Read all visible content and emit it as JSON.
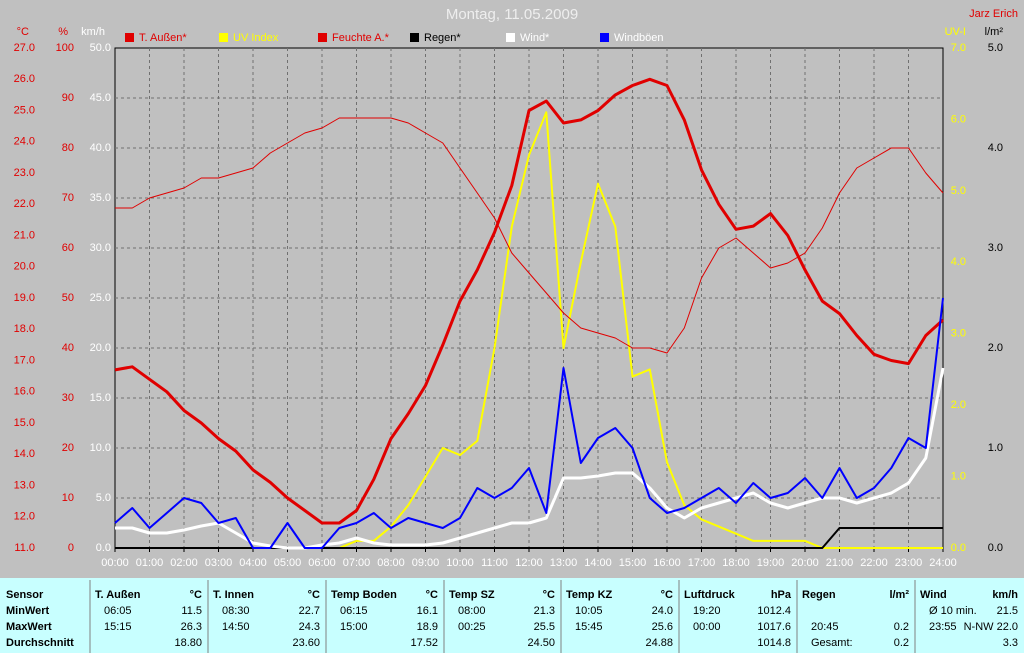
{
  "chart_data": {
    "type": "line",
    "title": "Montag, 11.05.2009",
    "author": "Jarz Erich",
    "x": [
      0,
      0.5,
      1,
      1.5,
      2,
      2.5,
      3,
      3.5,
      4,
      4.5,
      5,
      5.5,
      6,
      6.5,
      7,
      7.5,
      8,
      8.5,
      9,
      9.5,
      10,
      10.5,
      11,
      11.5,
      12,
      12.5,
      13,
      13.5,
      14,
      14.5,
      15,
      15.5,
      16,
      16.5,
      17,
      17.5,
      18,
      18.5,
      19,
      19.5,
      20,
      20.5,
      21,
      21.5,
      22,
      22.5,
      23,
      23.5,
      24
    ],
    "xlim": [
      0,
      24
    ],
    "xticks": [
      {
        "value": 0,
        "label": "00:00"
      },
      {
        "value": 1,
        "label": "01:00"
      },
      {
        "value": 2,
        "label": "02:00"
      },
      {
        "value": 3,
        "label": "03:00"
      },
      {
        "value": 4,
        "label": "04:00"
      },
      {
        "value": 5,
        "label": "05:00"
      },
      {
        "value": 6,
        "label": "06:00"
      },
      {
        "value": 7,
        "label": "07:00"
      },
      {
        "value": 8,
        "label": "08:00"
      },
      {
        "value": 9,
        "label": "09:00"
      },
      {
        "value": 10,
        "label": "10:00"
      },
      {
        "value": 11,
        "label": "11:00"
      },
      {
        "value": 12,
        "label": "12:00"
      },
      {
        "value": 13,
        "label": "13:00"
      },
      {
        "value": 14,
        "label": "14:00"
      },
      {
        "value": 15,
        "label": "15:00"
      },
      {
        "value": 16,
        "label": "16:00"
      },
      {
        "value": 17,
        "label": "17:00"
      },
      {
        "value": 18,
        "label": "18:00"
      },
      {
        "value": 19,
        "label": "19:00"
      },
      {
        "value": 20,
        "label": "20:00"
      },
      {
        "value": 21,
        "label": "21:00"
      },
      {
        "value": 22,
        "label": "22:00"
      },
      {
        "value": 23,
        "label": "23:00"
      },
      {
        "value": 24,
        "label": "24:00"
      }
    ],
    "grid": true,
    "axes": [
      {
        "label": "°C",
        "color": "#e00000",
        "lim": [
          11,
          27
        ],
        "ticks": [
          {
            "value": 11,
            "label": "11.0"
          },
          {
            "value": 12,
            "label": "12.0"
          },
          {
            "value": 13,
            "label": "13.0"
          },
          {
            "value": 14,
            "label": "14.0"
          },
          {
            "value": 15,
            "label": "15.0"
          },
          {
            "value": 16,
            "label": "16.0"
          },
          {
            "value": 17,
            "label": "17.0"
          },
          {
            "value": 18,
            "label": "18.0"
          },
          {
            "value": 19,
            "label": "19.0"
          },
          {
            "value": 20,
            "label": "20.0"
          },
          {
            "value": 21,
            "label": "21.0"
          },
          {
            "value": 22,
            "label": "22.0"
          },
          {
            "value": 23,
            "label": "23.0"
          },
          {
            "value": 24,
            "label": "24.0"
          },
          {
            "value": 25,
            "label": "25.0"
          },
          {
            "value": 26,
            "label": "26.0"
          },
          {
            "value": 27,
            "label": "27.0"
          }
        ]
      },
      {
        "label": "%",
        "color": "#e00000",
        "lim": [
          0,
          100
        ],
        "ticks": [
          0,
          10,
          20,
          30,
          40,
          50,
          60,
          70,
          80,
          90,
          100
        ]
      },
      {
        "label": "km/h",
        "color": "#ffffff",
        "lim": [
          0,
          50
        ],
        "grid": true,
        "ticks": [
          {
            "value": 0,
            "label": "0.0"
          },
          {
            "value": 5,
            "label": "5.0"
          },
          {
            "value": 10,
            "label": "10.0"
          },
          {
            "value": 15,
            "label": "15.0"
          },
          {
            "value": 20,
            "label": "20.0"
          },
          {
            "value": 25,
            "label": "25.0"
          },
          {
            "value": 30,
            "label": "30.0"
          },
          {
            "value": 35,
            "label": "35.0"
          },
          {
            "value": 40,
            "label": "40.0"
          },
          {
            "value": 45,
            "label": "45.0"
          },
          {
            "value": 50,
            "label": "50.0"
          }
        ]
      },
      {
        "label": "UV-I",
        "color": "#ffff00",
        "lim": [
          0,
          7
        ],
        "ticks": [
          {
            "value": 0,
            "label": "0.0"
          },
          {
            "value": 1,
            "label": "1.0"
          },
          {
            "value": 2,
            "label": "2.0"
          },
          {
            "value": 3,
            "label": "3.0"
          },
          {
            "value": 4,
            "label": "4.0"
          },
          {
            "value": 5,
            "label": "5.0"
          },
          {
            "value": 6,
            "label": "6.0"
          },
          {
            "value": 7,
            "label": "7.0"
          }
        ]
      },
      {
        "label": "l/m²",
        "color": "#000000",
        "lim": [
          0,
          5
        ],
        "ticks": [
          {
            "value": 0,
            "label": "0.0"
          },
          {
            "value": 1,
            "label": "1.0"
          },
          {
            "value": 2,
            "label": "2.0"
          },
          {
            "value": 3,
            "label": "3.0"
          },
          {
            "value": 4,
            "label": "4.0"
          },
          {
            "value": 5,
            "label": "5.0"
          }
        ]
      }
    ],
    "series": [
      {
        "name": "T. Außen*",
        "color": "#e00000",
        "width": 3,
        "axis": 0,
        "values": [
          16.7,
          16.8,
          16.4,
          16.0,
          15.4,
          15.0,
          14.5,
          14.1,
          13.5,
          13.1,
          12.6,
          12.2,
          11.8,
          11.8,
          12.2,
          13.2,
          14.5,
          15.3,
          16.2,
          17.5,
          18.9,
          19.9,
          21.1,
          22.6,
          25.0,
          25.3,
          24.6,
          24.7,
          25.0,
          25.5,
          25.8,
          26.0,
          25.8,
          24.7,
          23.1,
          22.0,
          21.2,
          21.3,
          21.7,
          21.0,
          19.9,
          18.9,
          18.5,
          17.8,
          17.2,
          17.0,
          16.9,
          17.8,
          18.3
        ]
      },
      {
        "name": "UV Index",
        "color": "#ffff00",
        "width": 2,
        "axis": 3,
        "values": [
          0,
          0,
          0,
          0,
          0,
          0,
          0,
          0,
          0,
          0,
          0,
          0,
          0,
          0,
          0.1,
          0.1,
          0.3,
          0.6,
          1.0,
          1.4,
          1.3,
          1.5,
          2.8,
          4.5,
          5.5,
          6.1,
          2.8,
          4.0,
          5.1,
          4.5,
          2.4,
          2.5,
          1.2,
          0.6,
          0.4,
          0.3,
          0.2,
          0.1,
          0.1,
          0.1,
          0.1,
          0,
          0,
          0,
          0,
          0,
          0,
          0,
          0
        ]
      },
      {
        "name": "Feuchte A.*",
        "color": "#e00000",
        "width": 1,
        "axis": 1,
        "values": [
          68,
          68,
          70,
          71,
          72,
          74,
          74,
          75,
          76,
          79,
          81,
          83,
          84,
          86,
          86,
          86,
          86,
          85,
          83,
          81,
          76,
          71,
          66,
          59,
          55,
          51,
          47,
          44,
          43,
          42,
          40,
          40,
          39,
          44,
          54,
          60,
          62,
          59,
          56,
          57,
          59,
          64,
          71,
          76,
          78,
          80,
          80,
          75,
          71
        ]
      },
      {
        "name": "Regen*",
        "color": "#000000",
        "width": 2,
        "axis": 4,
        "values": [
          0,
          0,
          0,
          0,
          0,
          0,
          0,
          0,
          0,
          0,
          0,
          0,
          0,
          0,
          0,
          0,
          0,
          0,
          0,
          0,
          0,
          0,
          0,
          0,
          0,
          0,
          0,
          0,
          0,
          0,
          0,
          0,
          0,
          0,
          0,
          0,
          0,
          0,
          0,
          0,
          0,
          0,
          0.2,
          0.2,
          0.2,
          0.2,
          0.2,
          0.2,
          0.2
        ]
      },
      {
        "name": "Wind*",
        "color": "#ffffff",
        "width": 3,
        "axis": 2,
        "values": [
          2.0,
          2.0,
          1.5,
          1.5,
          1.8,
          2.2,
          2.5,
          1.5,
          0.5,
          0.2,
          0,
          0,
          0.3,
          0.5,
          1.0,
          0.5,
          0.3,
          0.3,
          0.3,
          0.5,
          1.0,
          1.5,
          2.0,
          2.5,
          2.5,
          3.0,
          7.0,
          7.0,
          7.2,
          7.5,
          7.5,
          6.0,
          4.0,
          3.0,
          4.0,
          4.5,
          5.0,
          5.5,
          4.5,
          4.0,
          4.5,
          5.0,
          5.0,
          4.5,
          5.0,
          5.5,
          6.5,
          9.0,
          18.0
        ]
      },
      {
        "name": "Windböen",
        "color": "#0000ff",
        "width": 2,
        "axis": 2,
        "values": [
          2.5,
          4.0,
          2.0,
          3.5,
          5.0,
          4.5,
          2.5,
          3.0,
          0,
          0,
          2.5,
          0,
          0,
          2.0,
          2.5,
          3.5,
          2.0,
          3.0,
          2.5,
          2.0,
          3.0,
          6.0,
          5.0,
          6.0,
          8.0,
          3.5,
          18.0,
          8.5,
          11.0,
          12.0,
          10.0,
          5.0,
          3.5,
          4.0,
          5.0,
          6.0,
          4.5,
          6.5,
          5.0,
          5.5,
          7.0,
          5.0,
          8.0,
          5.0,
          6.0,
          8.0,
          11.0,
          10.0,
          25.0
        ]
      }
    ]
  },
  "table": {
    "row_labels": [
      "Sensor",
      "MinWert",
      "MaxWert",
      "Durchschnitt"
    ],
    "columns": [
      {
        "name": "T. Außen",
        "unit": "°C",
        "rows": [
          {
            "time": "06:05",
            "value": "11.5"
          },
          {
            "time": "15:15",
            "value": "26.3"
          },
          {
            "value": "18.80"
          }
        ]
      },
      {
        "name": "T. Innen",
        "unit": "°C",
        "rows": [
          {
            "time": "08:30",
            "value": "22.7"
          },
          {
            "time": "14:50",
            "value": "24.3"
          },
          {
            "value": "23.60"
          }
        ]
      },
      {
        "name": "Temp Boden",
        "unit": "°C",
        "rows": [
          {
            "time": "06:15",
            "value": "16.1"
          },
          {
            "time": "15:00",
            "value": "18.9"
          },
          {
            "value": "17.52"
          }
        ]
      },
      {
        "name": "Temp SZ",
        "unit": "°C",
        "rows": [
          {
            "time": "08:00",
            "value": "21.3"
          },
          {
            "time": "00:25",
            "value": "25.5"
          },
          {
            "value": "24.50"
          }
        ]
      },
      {
        "name": "Temp KZ",
        "unit": "°C",
        "rows": [
          {
            "time": "10:05",
            "value": "24.0"
          },
          {
            "time": "15:45",
            "value": "25.6"
          },
          {
            "value": "24.88"
          }
        ]
      },
      {
        "name": "Luftdruck",
        "unit": "hPa",
        "rows": [
          {
            "time": "19:20",
            "value": "1012.4"
          },
          {
            "time": "00:00",
            "value": "1017.6"
          },
          {
            "value": "1014.8"
          }
        ]
      },
      {
        "name": "Regen",
        "unit": "l/m²",
        "rows": [
          null,
          {
            "time": "20:45",
            "value": "0.2"
          },
          {
            "time": "Gesamt:",
            "value": "0.2"
          }
        ]
      },
      {
        "name": "Wind",
        "unit": "km/h",
        "rows": [
          {
            "time": "Ø 10 min.",
            "value": "21.5"
          },
          {
            "time": "23:55",
            "value": "N-NW 22.0"
          },
          {
            "value": "3.3"
          }
        ]
      }
    ]
  }
}
